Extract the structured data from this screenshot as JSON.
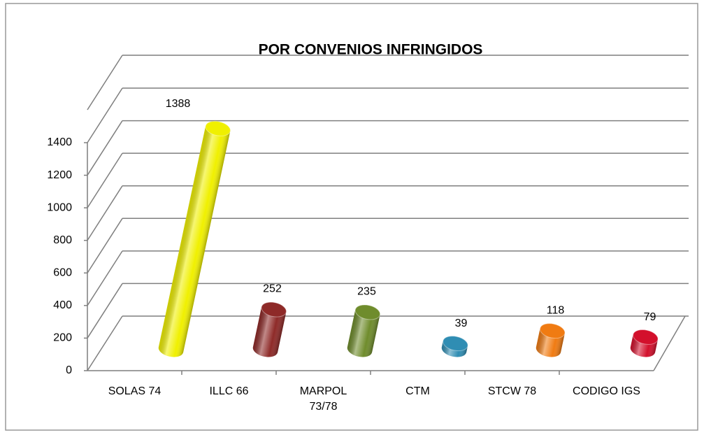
{
  "chart_data": {
    "type": "bar3d",
    "title": "POR CONVENIOS INFRINGIDOS",
    "categories": [
      "SOLAS 74",
      "ILLC 66",
      "MARPOL\n73/78",
      "CTM",
      "STCW 78",
      "CODIGO IGS"
    ],
    "values": [
      1388,
      252,
      235,
      39,
      118,
      79
    ],
    "colors": [
      "#f0f000",
      "#8e2a28",
      "#6f8c2c",
      "#2f8db3",
      "#f07b12",
      "#d3102c"
    ],
    "ylim": [
      0,
      1400
    ],
    "yticks": [
      0,
      200,
      400,
      600,
      800,
      1000,
      1200,
      1400
    ],
    "grid": true
  }
}
